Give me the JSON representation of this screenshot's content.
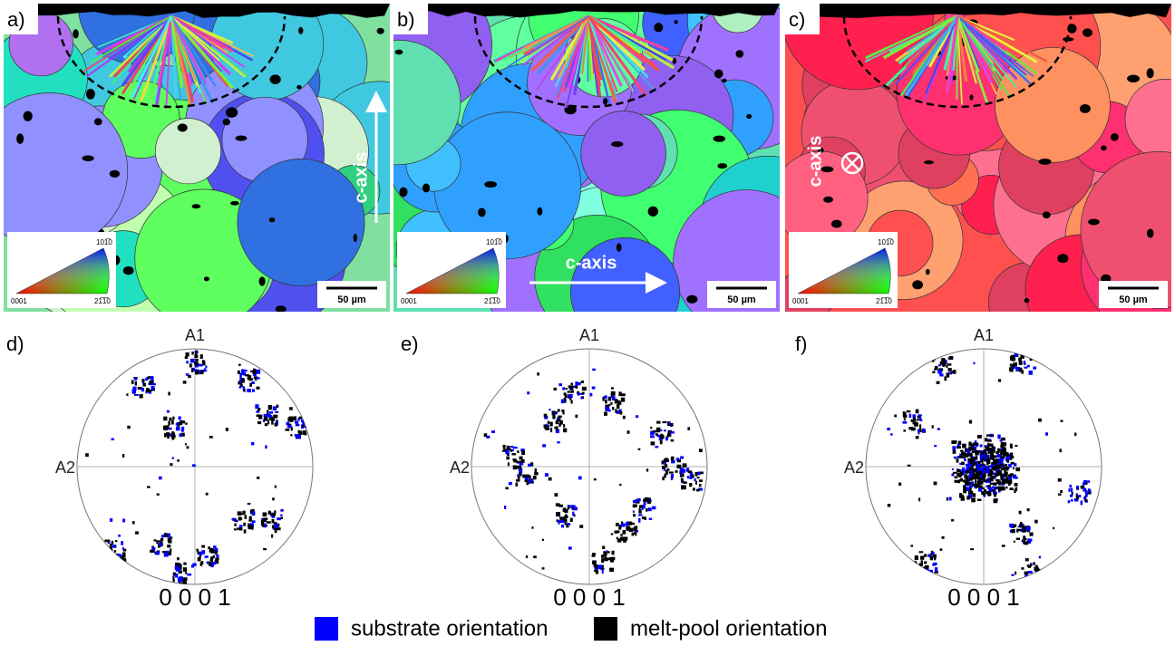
{
  "panels": [
    {
      "label": "a)",
      "axis_label": "c-axis",
      "scale_bar": "50 µm",
      "key": {
        "top": "101̅0",
        "left": "0001",
        "right": "21̅1̅0"
      }
    },
    {
      "label": "b)",
      "axis_label": "c-axis",
      "scale_bar": "50 µm",
      "key": {
        "top": "101̅0",
        "left": "0001",
        "right": "21̅1̅0"
      }
    },
    {
      "label": "c)",
      "axis_label": "c-axis",
      "scale_bar": "50 µm",
      "key": {
        "top": "101̅0",
        "left": "0001",
        "right": "21̅1̅0"
      }
    }
  ],
  "pole_figures": [
    {
      "label": "d)",
      "top": "A1",
      "left": "A2",
      "bottom": "0 0 0 1"
    },
    {
      "label": "e)",
      "top": "A1",
      "left": "A2",
      "bottom": "0 0 0 1"
    },
    {
      "label": "f)",
      "top": "A1",
      "left": "A2",
      "bottom": "0 0 0 1"
    }
  ],
  "legend": [
    {
      "label": "substrate orientation",
      "color": "#0000ff"
    },
    {
      "label": "melt-pool orientation",
      "color": "#000000"
    }
  ]
}
